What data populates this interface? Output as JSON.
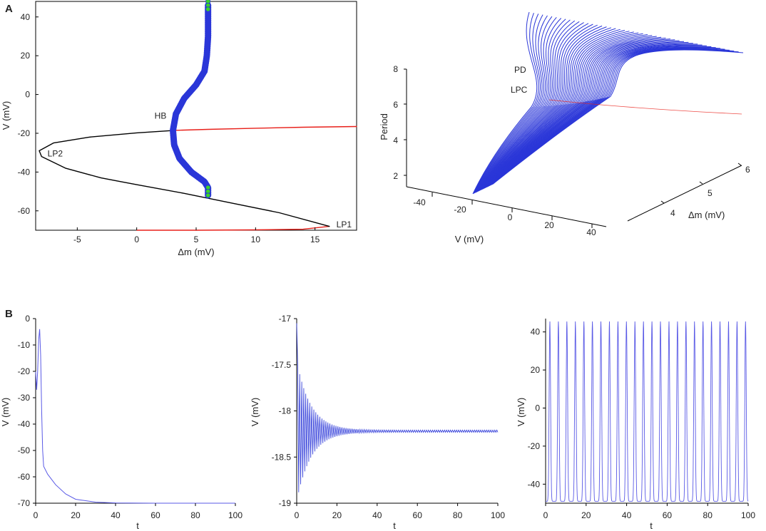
{
  "panel_labels": {
    "a": "A",
    "b": "B"
  },
  "colors": {
    "stable": "#000000",
    "unstable": "#e8201a",
    "cycle": "#2a36d8",
    "marker": "#3ad12a",
    "trace": "#5a5ae6"
  },
  "chart_data": [
    {
      "id": "A-left",
      "type": "line",
      "xlabel": "Δm (mV)",
      "ylabel": "V (mV)",
      "xlim": [
        -8.5,
        18.5
      ],
      "ylim": [
        -70,
        48
      ],
      "xticks": [
        -5,
        0,
        5,
        10,
        15
      ],
      "yticks": [
        40,
        20,
        0,
        -20,
        -40,
        -60
      ],
      "annotations": [
        {
          "text": "HB",
          "x": 1.5,
          "y": -12.5
        },
        {
          "text": "LP2",
          "x": -7.5,
          "y": -32
        },
        {
          "text": "LP1",
          "x": 16.8,
          "y": -68.5
        }
      ],
      "series": [
        {
          "kind": "unstable",
          "points": [
            [
              0,
              -70
            ],
            [
              5,
              -70
            ],
            [
              10,
              -69.8
            ],
            [
              14,
              -69.5
            ],
            [
              16.2,
              -68
            ]
          ]
        },
        {
          "kind": "stable",
          "points": [
            [
              16.2,
              -68
            ],
            [
              12,
              -61
            ],
            [
              8,
              -56
            ],
            [
              4,
              -51
            ],
            [
              0,
              -46.5
            ],
            [
              -3,
              -43
            ],
            [
              -6,
              -38
            ],
            [
              -8,
              -32
            ],
            [
              -8.2,
              -29
            ],
            [
              -7,
              -25
            ],
            [
              -4,
              -22
            ],
            [
              0,
              -19.8
            ],
            [
              3.2,
              -18.5
            ]
          ]
        },
        {
          "kind": "unstable",
          "points": [
            [
              3.2,
              -18.5
            ],
            [
              6,
              -18
            ],
            [
              10,
              -17.4
            ],
            [
              14,
              -16.9
            ],
            [
              18.5,
              -16.5
            ]
          ]
        },
        {
          "kind": "cycle",
          "points": [
            [
              6.0,
              -52
            ],
            [
              6.0,
              -48
            ],
            [
              5.7,
              -45
            ],
            [
              4.6,
              -40
            ],
            [
              3.6,
              -33
            ],
            [
              3.15,
              -26
            ],
            [
              3.05,
              -18.5
            ],
            [
              3.3,
              -10
            ],
            [
              4.0,
              -2
            ],
            [
              5.0,
              5
            ],
            [
              5.7,
              12
            ],
            [
              5.9,
              20
            ],
            [
              6.0,
              30
            ],
            [
              6.0,
              40
            ],
            [
              6.0,
              46
            ]
          ]
        }
      ],
      "markers": [
        [
          6.0,
          48
        ],
        [
          6.0,
          46
        ],
        [
          6.0,
          44
        ],
        [
          6.0,
          -48
        ],
        [
          6.0,
          -50
        ],
        [
          6.0,
          -52
        ]
      ]
    },
    {
      "id": "A-right",
      "type": "surface-3d",
      "xlabel": "V (mV)",
      "ylabel": "Δm (mV)",
      "zlabel": "Period",
      "xticks": [
        -40,
        -20,
        0,
        20,
        40
      ],
      "yticks": [
        4,
        5,
        6
      ],
      "zticks": [
        2,
        4,
        6,
        8
      ],
      "annotations": [
        "PD",
        "LPC"
      ],
      "cycles": 48
    },
    {
      "id": "B-left",
      "type": "line",
      "xlabel": "t",
      "ylabel": "V (mV)",
      "xlim": [
        0,
        100
      ],
      "ylim": [
        -70,
        0
      ],
      "xticks": [
        0,
        20,
        40,
        60,
        80,
        100
      ],
      "yticks": [
        0,
        -10,
        -20,
        -30,
        -40,
        -50,
        -60,
        -70
      ],
      "series": [
        {
          "points": [
            [
              0,
              -20
            ],
            [
              0.5,
              -27
            ],
            [
              1,
              -20
            ],
            [
              1.5,
              -8
            ],
            [
              2,
              -4
            ],
            [
              2.5,
              -14
            ],
            [
              3,
              -35
            ],
            [
              3.5,
              -50
            ],
            [
              4,
              -56
            ],
            [
              6,
              -59
            ],
            [
              10,
              -63
            ],
            [
              15,
              -66.5
            ],
            [
              20,
              -68.5
            ],
            [
              30,
              -69.6
            ],
            [
              40,
              -69.9
            ],
            [
              60,
              -70
            ],
            [
              100,
              -70
            ]
          ]
        }
      ]
    },
    {
      "id": "B-middle",
      "type": "line",
      "xlabel": "t",
      "ylabel": "V (mV)",
      "xlim": [
        0,
        100
      ],
      "ylim": [
        -19,
        -17
      ],
      "xticks": [
        0,
        20,
        40,
        60,
        80,
        100
      ],
      "yticks": [
        -17,
        -17.5,
        -18,
        -18.5,
        -19
      ],
      "signal": {
        "kind": "damped",
        "start": -17.05,
        "equilibrium": -18.22,
        "initial_amplitude": 0.75,
        "decay_time": 7,
        "half_period": 0.5
      }
    },
    {
      "id": "B-right",
      "type": "line",
      "xlabel": "t",
      "ylabel": "V (mV)",
      "xlim": [
        0,
        100
      ],
      "ylim": [
        -50,
        47
      ],
      "xticks": [
        0,
        20,
        40,
        60,
        80,
        100
      ],
      "yticks": [
        40,
        20,
        0,
        -20,
        -40
      ],
      "signal": {
        "kind": "spikes",
        "period": 4.2,
        "peak": 45.5,
        "trough": -49
      }
    }
  ]
}
